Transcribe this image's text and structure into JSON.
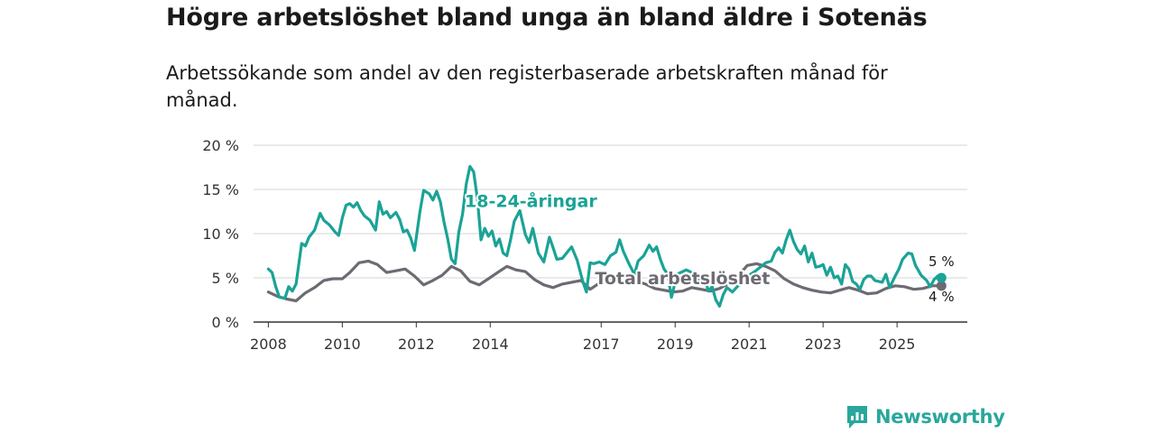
{
  "header": {
    "title": "Högre arbetslöshet bland unga än bland äldre i Sotenäs",
    "subtitle": "Arbetssökande som andel av den registerbaserade arbetskraften månad för månad."
  },
  "brand": {
    "name": "Newsworthy",
    "icon": "newsworthy-logo-icon",
    "color": "#2aa79b"
  },
  "chart_data": {
    "type": "line",
    "title": "Högre arbetslöshet bland unga än bland äldre i Sotenäs",
    "subtitle": "Arbetssökande som andel av den registerbaserade arbetskraften månad för månad.",
    "xlabel": "",
    "ylabel": "",
    "xlim": [
      2007.6,
      2026.9
    ],
    "ylim": [
      0,
      20
    ],
    "grid": true,
    "x_ticks": [
      2008,
      2010,
      2012,
      2014,
      2017,
      2019,
      2021,
      2023,
      2025
    ],
    "x_tick_labels": [
      "2008",
      "2010",
      "2012",
      "2014",
      "2017",
      "2019",
      "2021",
      "2023",
      "2025"
    ],
    "y_ticks": [
      0,
      5,
      10,
      15,
      20
    ],
    "y_tick_labels": [
      "0 %",
      "5 %",
      "10 %",
      "15 %",
      "20 %"
    ],
    "series": [
      {
        "name": "Total arbetslöshet",
        "label": "Total arbetslöshet",
        "color": "#6e6a73",
        "end_label": "4 %",
        "points": [
          [
            2008.0,
            3.4
          ],
          [
            2008.25,
            2.9
          ],
          [
            2008.5,
            2.6
          ],
          [
            2008.75,
            2.4
          ],
          [
            2009.0,
            3.3
          ],
          [
            2009.25,
            3.9
          ],
          [
            2009.5,
            4.7
          ],
          [
            2009.75,
            4.9
          ],
          [
            2010.0,
            4.9
          ],
          [
            2010.2,
            5.6
          ],
          [
            2010.45,
            6.7
          ],
          [
            2010.7,
            6.9
          ],
          [
            2010.95,
            6.5
          ],
          [
            2011.2,
            5.6
          ],
          [
            2011.45,
            5.8
          ],
          [
            2011.7,
            6.0
          ],
          [
            2011.95,
            5.2
          ],
          [
            2012.2,
            4.2
          ],
          [
            2012.45,
            4.7
          ],
          [
            2012.7,
            5.3
          ],
          [
            2012.95,
            6.3
          ],
          [
            2013.2,
            5.8
          ],
          [
            2013.45,
            4.6
          ],
          [
            2013.7,
            4.2
          ],
          [
            2013.95,
            4.9
          ],
          [
            2014.2,
            5.6
          ],
          [
            2014.45,
            6.3
          ],
          [
            2014.7,
            5.9
          ],
          [
            2014.95,
            5.7
          ],
          [
            2015.2,
            4.8
          ],
          [
            2015.45,
            4.2
          ],
          [
            2015.7,
            3.9
          ],
          [
            2015.95,
            4.3
          ],
          [
            2016.2,
            4.5
          ],
          [
            2016.45,
            4.7
          ],
          [
            2016.7,
            3.7
          ],
          [
            2016.95,
            4.4
          ],
          [
            2017.2,
            4.6
          ],
          [
            2017.45,
            5.2
          ],
          [
            2017.7,
            5.0
          ],
          [
            2017.95,
            4.6
          ],
          [
            2018.2,
            4.3
          ],
          [
            2018.45,
            3.8
          ],
          [
            2018.7,
            3.6
          ],
          [
            2018.95,
            3.4
          ],
          [
            2019.2,
            3.5
          ],
          [
            2019.45,
            3.9
          ],
          [
            2019.7,
            3.7
          ],
          [
            2019.95,
            3.5
          ],
          [
            2020.2,
            3.8
          ],
          [
            2020.45,
            4.4
          ],
          [
            2020.7,
            5.2
          ],
          [
            2020.95,
            6.4
          ],
          [
            2021.2,
            6.6
          ],
          [
            2021.45,
            6.3
          ],
          [
            2021.7,
            5.8
          ],
          [
            2021.95,
            4.9
          ],
          [
            2022.2,
            4.3
          ],
          [
            2022.45,
            3.9
          ],
          [
            2022.7,
            3.6
          ],
          [
            2022.95,
            3.4
          ],
          [
            2023.2,
            3.3
          ],
          [
            2023.45,
            3.6
          ],
          [
            2023.7,
            3.9
          ],
          [
            2023.95,
            3.6
          ],
          [
            2024.2,
            3.2
          ],
          [
            2024.45,
            3.3
          ],
          [
            2024.7,
            3.8
          ],
          [
            2024.95,
            4.1
          ],
          [
            2025.2,
            4.0
          ],
          [
            2025.45,
            3.7
          ],
          [
            2025.7,
            3.8
          ],
          [
            2025.95,
            4.1
          ],
          [
            2026.2,
            4.1
          ]
        ]
      },
      {
        "name": "18-24-åringar",
        "label": "18-24-åringar",
        "color": "#1aa396",
        "end_label": "5 %",
        "points": [
          [
            2008.0,
            6.0
          ],
          [
            2008.1,
            5.6
          ],
          [
            2008.2,
            4.0
          ],
          [
            2008.3,
            2.8
          ],
          [
            2008.45,
            2.7
          ],
          [
            2008.55,
            4.0
          ],
          [
            2008.65,
            3.5
          ],
          [
            2008.75,
            4.3
          ],
          [
            2008.9,
            8.9
          ],
          [
            2009.0,
            8.6
          ],
          [
            2009.1,
            9.6
          ],
          [
            2009.25,
            10.4
          ],
          [
            2009.4,
            12.3
          ],
          [
            2009.5,
            11.5
          ],
          [
            2009.65,
            11.0
          ],
          [
            2009.8,
            10.2
          ],
          [
            2009.9,
            9.8
          ],
          [
            2010.0,
            11.8
          ],
          [
            2010.1,
            13.2
          ],
          [
            2010.2,
            13.4
          ],
          [
            2010.3,
            13.0
          ],
          [
            2010.4,
            13.5
          ],
          [
            2010.5,
            12.6
          ],
          [
            2010.6,
            12.0
          ],
          [
            2010.75,
            11.5
          ],
          [
            2010.9,
            10.4
          ],
          [
            2011.0,
            13.6
          ],
          [
            2011.1,
            12.2
          ],
          [
            2011.2,
            12.5
          ],
          [
            2011.3,
            11.8
          ],
          [
            2011.45,
            12.4
          ],
          [
            2011.55,
            11.6
          ],
          [
            2011.65,
            10.2
          ],
          [
            2011.75,
            10.4
          ],
          [
            2011.85,
            9.5
          ],
          [
            2011.95,
            8.1
          ],
          [
            2012.1,
            12.5
          ],
          [
            2012.2,
            14.9
          ],
          [
            2012.35,
            14.5
          ],
          [
            2012.45,
            13.8
          ],
          [
            2012.55,
            14.8
          ],
          [
            2012.65,
            13.6
          ],
          [
            2012.75,
            11.3
          ],
          [
            2012.85,
            9.4
          ],
          [
            2012.95,
            7.1
          ],
          [
            2013.05,
            6.6
          ],
          [
            2013.15,
            10.2
          ],
          [
            2013.25,
            12.2
          ],
          [
            2013.35,
            15.6
          ],
          [
            2013.45,
            17.6
          ],
          [
            2013.55,
            17.0
          ],
          [
            2013.65,
            14.0
          ],
          [
            2013.75,
            9.3
          ],
          [
            2013.85,
            10.6
          ],
          [
            2013.95,
            9.7
          ],
          [
            2014.05,
            10.3
          ],
          [
            2014.15,
            8.6
          ],
          [
            2014.25,
            9.4
          ],
          [
            2014.35,
            7.8
          ],
          [
            2014.45,
            7.5
          ],
          [
            2014.55,
            9.3
          ],
          [
            2014.65,
            11.4
          ],
          [
            2014.8,
            12.6
          ],
          [
            2014.95,
            9.9
          ],
          [
            2015.05,
            9.0
          ],
          [
            2015.15,
            10.6
          ],
          [
            2015.3,
            7.8
          ],
          [
            2015.45,
            6.8
          ],
          [
            2015.6,
            9.6
          ],
          [
            2015.7,
            8.4
          ],
          [
            2015.8,
            7.1
          ],
          [
            2015.95,
            7.2
          ],
          [
            2016.1,
            8.0
          ],
          [
            2016.2,
            8.5
          ],
          [
            2016.35,
            7.0
          ],
          [
            2016.5,
            4.6
          ],
          [
            2016.6,
            3.4
          ],
          [
            2016.7,
            6.7
          ],
          [
            2016.8,
            6.6
          ],
          [
            2016.95,
            6.8
          ],
          [
            2017.1,
            6.5
          ],
          [
            2017.25,
            7.5
          ],
          [
            2017.4,
            7.9
          ],
          [
            2017.5,
            9.3
          ],
          [
            2017.6,
            8.0
          ],
          [
            2017.75,
            6.6
          ],
          [
            2017.9,
            5.4
          ],
          [
            2018.0,
            6.9
          ],
          [
            2018.15,
            7.5
          ],
          [
            2018.3,
            8.7
          ],
          [
            2018.4,
            8.0
          ],
          [
            2018.5,
            8.5
          ],
          [
            2018.6,
            7.1
          ],
          [
            2018.7,
            6.0
          ],
          [
            2018.8,
            5.4
          ],
          [
            2018.9,
            2.8
          ],
          [
            2019.05,
            5.4
          ],
          [
            2019.15,
            5.6
          ],
          [
            2019.3,
            5.9
          ],
          [
            2019.45,
            5.6
          ],
          [
            2019.55,
            5.2
          ],
          [
            2019.7,
            4.6
          ],
          [
            2019.8,
            4.9
          ],
          [
            2019.9,
            3.5
          ],
          [
            2020.0,
            4.0
          ],
          [
            2020.1,
            2.5
          ],
          [
            2020.2,
            1.8
          ],
          [
            2020.3,
            3.1
          ],
          [
            2020.4,
            3.9
          ],
          [
            2020.55,
            3.4
          ],
          [
            2020.7,
            4.1
          ],
          [
            2020.85,
            4.7
          ],
          [
            2021.0,
            5.3
          ],
          [
            2021.15,
            5.7
          ],
          [
            2021.3,
            6.2
          ],
          [
            2021.45,
            6.7
          ],
          [
            2021.6,
            6.9
          ],
          [
            2021.7,
            7.9
          ],
          [
            2021.8,
            8.4
          ],
          [
            2021.9,
            7.8
          ],
          [
            2022.0,
            9.3
          ],
          [
            2022.1,
            10.4
          ],
          [
            2022.2,
            9.1
          ],
          [
            2022.3,
            8.2
          ],
          [
            2022.4,
            7.7
          ],
          [
            2022.5,
            8.6
          ],
          [
            2022.6,
            6.8
          ],
          [
            2022.7,
            7.8
          ],
          [
            2022.8,
            6.2
          ],
          [
            2022.9,
            6.3
          ],
          [
            2023.0,
            6.5
          ],
          [
            2023.1,
            5.3
          ],
          [
            2023.2,
            6.2
          ],
          [
            2023.3,
            5.0
          ],
          [
            2023.4,
            5.2
          ],
          [
            2023.5,
            4.3
          ],
          [
            2023.6,
            6.5
          ],
          [
            2023.7,
            6.0
          ],
          [
            2023.8,
            4.6
          ],
          [
            2023.9,
            4.3
          ],
          [
            2024.0,
            3.7
          ],
          [
            2024.1,
            4.8
          ],
          [
            2024.2,
            5.2
          ],
          [
            2024.3,
            5.2
          ],
          [
            2024.4,
            4.7
          ],
          [
            2024.5,
            4.6
          ],
          [
            2024.6,
            4.5
          ],
          [
            2024.7,
            5.4
          ],
          [
            2024.8,
            3.9
          ],
          [
            2024.95,
            5.2
          ],
          [
            2025.05,
            6.0
          ],
          [
            2025.15,
            7.1
          ],
          [
            2025.3,
            7.8
          ],
          [
            2025.4,
            7.7
          ],
          [
            2025.5,
            6.4
          ],
          [
            2025.65,
            5.3
          ],
          [
            2025.8,
            4.7
          ],
          [
            2025.9,
            4.0
          ],
          [
            2026.0,
            4.8
          ],
          [
            2026.1,
            5.2
          ],
          [
            2026.2,
            5.0
          ]
        ]
      }
    ],
    "annotations": [
      {
        "text": "18-24-åringar",
        "series": "18-24-åringar",
        "x": 2015.1,
        "y": 13.0
      },
      {
        "text": "Total arbetslöshet",
        "series": "Total arbetslöshet",
        "x": 2019.2,
        "y": 4.3
      }
    ]
  }
}
